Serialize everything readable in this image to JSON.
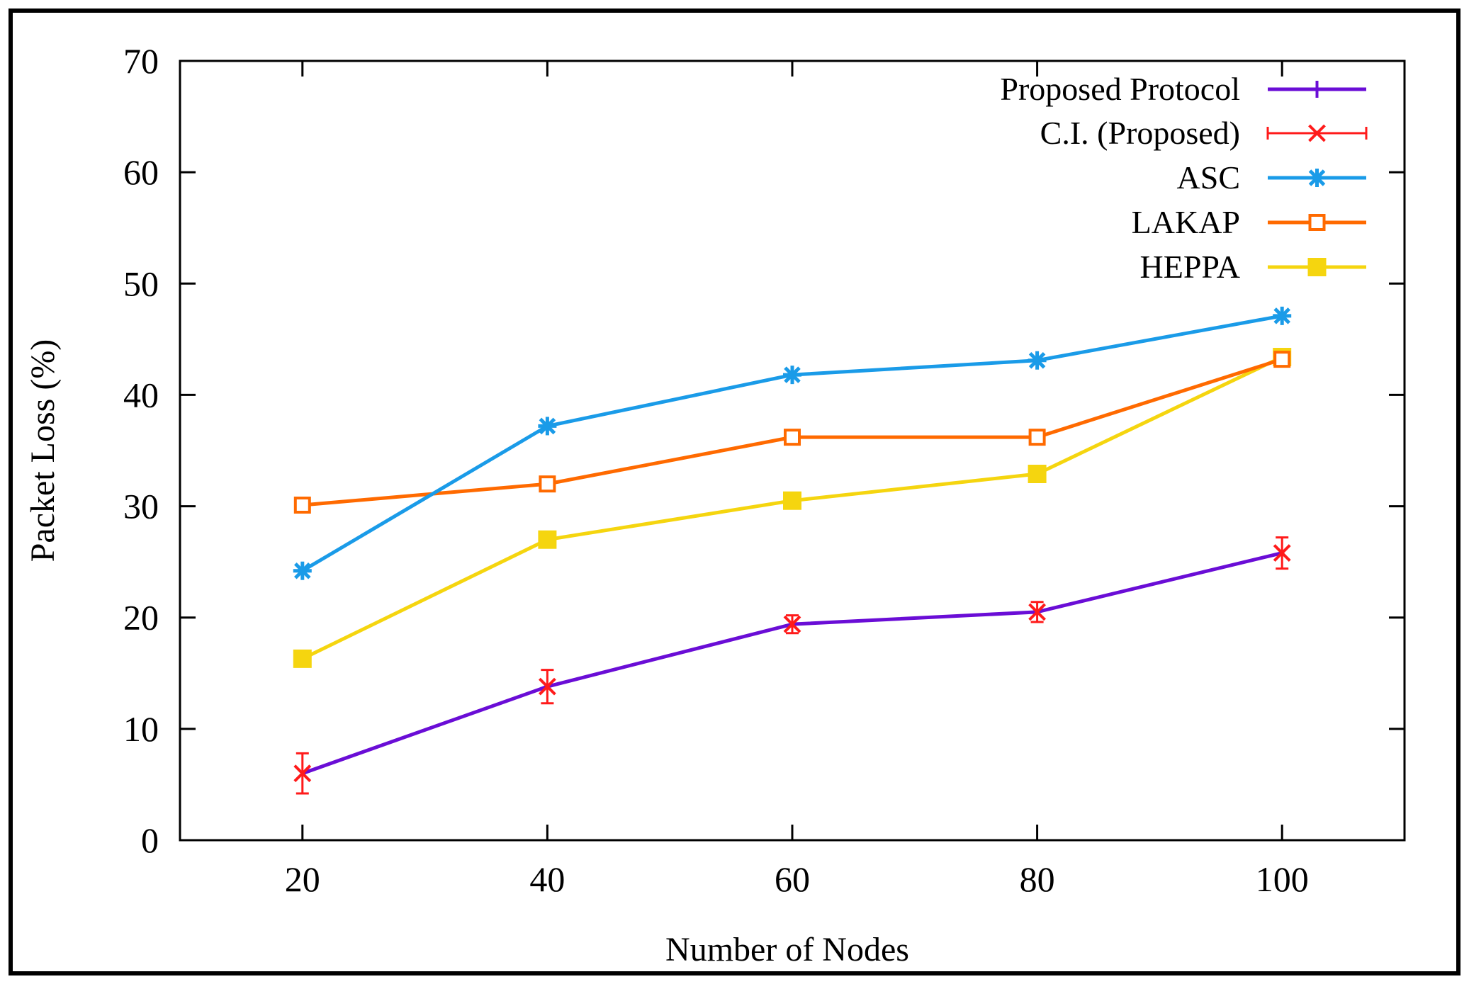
{
  "chart_data": {
    "type": "line",
    "title": "",
    "xlabel": "Number of Nodes",
    "ylabel": "Packet Loss (%)",
    "x": [
      20,
      40,
      60,
      80,
      100
    ],
    "xlim": [
      10,
      110
    ],
    "ylim": [
      0,
      70
    ],
    "xticks": [
      "20",
      "40",
      "60",
      "80",
      "100"
    ],
    "yticks": [
      "0",
      "10",
      "20",
      "30",
      "40",
      "50",
      "60",
      "70"
    ],
    "grid": false,
    "legend_position": "top-right",
    "series": [
      {
        "name": "Proposed Protocol",
        "color": "#6a0dd6",
        "marker": "errorbar-tick",
        "values": [
          6.0,
          13.8,
          19.4,
          20.5,
          25.8
        ]
      },
      {
        "name": "C.I. (Proposed)",
        "color": "#ff1a1a",
        "marker": "x-errorbar",
        "values": [
          6.0,
          13.8,
          19.4,
          20.5,
          25.8
        ],
        "errors": [
          1.8,
          1.5,
          0.8,
          0.9,
          1.4
        ]
      },
      {
        "name": "ASC",
        "color": "#1a9be8",
        "marker": "star",
        "values": [
          24.2,
          37.2,
          41.8,
          43.1,
          47.1
        ]
      },
      {
        "name": "LAKAP",
        "color": "#ff6a00",
        "marker": "open-square",
        "values": [
          30.1,
          32.0,
          36.2,
          36.2,
          43.2
        ]
      },
      {
        "name": "HEPPA",
        "color": "#f5d50f",
        "marker": "filled-square",
        "values": [
          16.3,
          27.0,
          30.5,
          32.9,
          43.4
        ]
      }
    ]
  }
}
